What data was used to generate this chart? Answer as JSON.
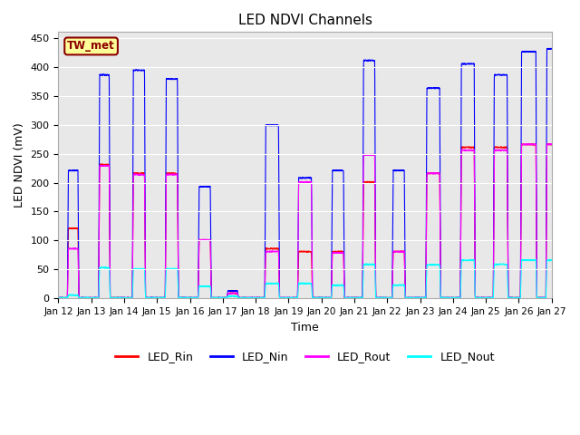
{
  "title": "LED NDVI Channels",
  "xlabel": "Time",
  "ylabel": "LED NDVI (mV)",
  "ylim": [
    0,
    460
  ],
  "yticks": [
    0,
    50,
    100,
    150,
    200,
    250,
    300,
    350,
    400,
    450
  ],
  "label_box": "TW_met",
  "colors": {
    "LED_Rin": "#ff0000",
    "LED_Nin": "#0000ff",
    "LED_Rout": "#ff00ff",
    "LED_Nout": "#00ffff"
  },
  "bg_color": "#e8e8e8",
  "fig_bg": "#ffffff",
  "xtick_labels": [
    "Jan 12",
    "Jan 13",
    "Jan 14",
    "Jan 15",
    "Jan 16",
    "Jan 17",
    "Jan 18",
    "Jan 19",
    "Jan 20",
    "Jan 21",
    "Jan 22",
    "Jan 23",
    "Jan 24",
    "Jan 25",
    "Jan 26",
    "Jan 27"
  ],
  "n_days": 16
}
